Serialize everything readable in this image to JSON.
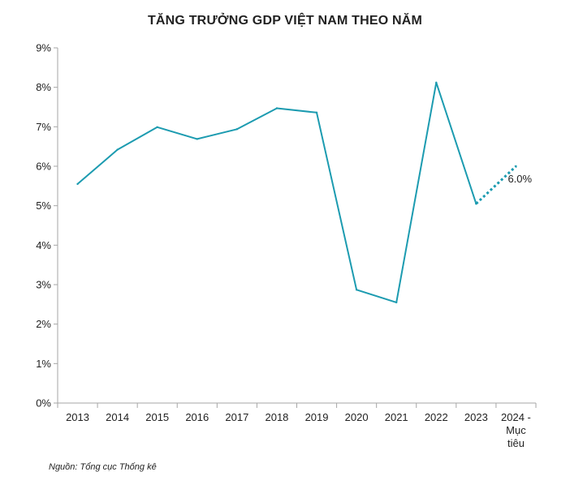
{
  "chart_data": {
    "type": "line",
    "title": "TĂNG TRƯỞNG GDP VIỆT NAM THEO NĂM",
    "source": "Nguồn: Tổng cục Thống kê",
    "categories": [
      [
        "2013"
      ],
      [
        "2014"
      ],
      [
        "2015"
      ],
      [
        "2016"
      ],
      [
        "2017"
      ],
      [
        "2018"
      ],
      [
        "2019"
      ],
      [
        "2020"
      ],
      [
        "2021"
      ],
      [
        "2022"
      ],
      [
        "2023"
      ],
      [
        "2024 -",
        "Mục",
        "tiêu"
      ]
    ],
    "series": [
      {
        "values": [
          5.55,
          6.42,
          6.99,
          6.69,
          6.94,
          7.47,
          7.36,
          2.87,
          2.55,
          8.12,
          5.05,
          null
        ],
        "color": "#1c9bb0",
        "style": "solid"
      },
      {
        "values": [
          null,
          null,
          null,
          null,
          null,
          null,
          null,
          null,
          null,
          null,
          5.05,
          6.0
        ],
        "color": "#1c9bb0",
        "style": "dotted"
      }
    ],
    "data_labels": [
      {
        "category_index": 11,
        "value": 6.0,
        "text": "6.0%"
      }
    ],
    "y_ticks": [
      "0%",
      "1%",
      "2%",
      "3%",
      "4%",
      "5%",
      "6%",
      "7%",
      "8%",
      "9%"
    ],
    "ylim": [
      0,
      9
    ],
    "grid": false
  }
}
